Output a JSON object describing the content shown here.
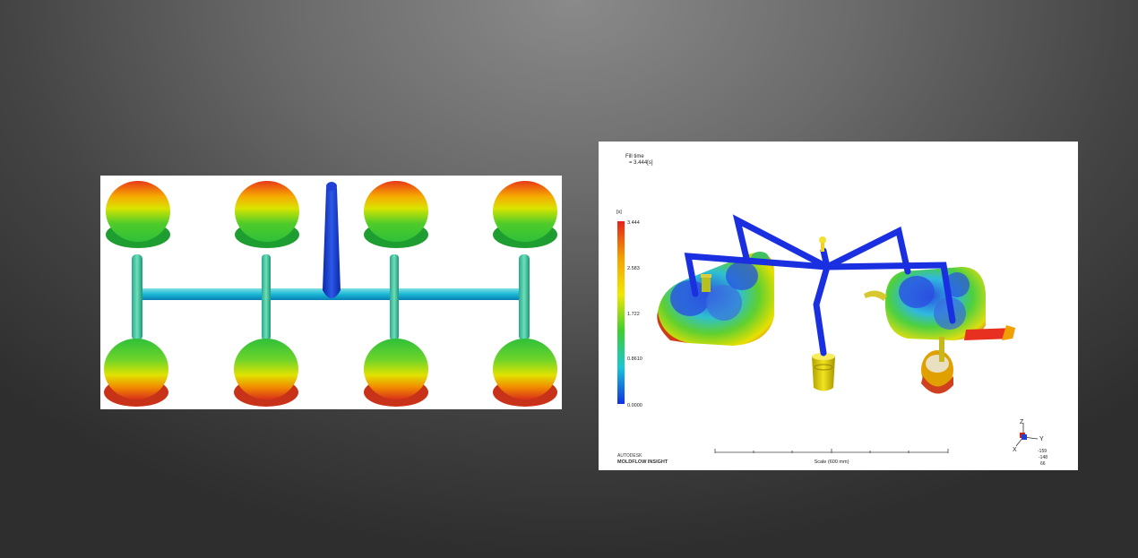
{
  "right_panel": {
    "result_title": "Fill time",
    "result_value": "= 3.444[s]",
    "legend": {
      "unit": "[s]",
      "ticks": [
        "3.444",
        "2.583",
        "1.722",
        "0.8610",
        "0.0000"
      ],
      "colors": [
        "#e8201a",
        "#f5a000",
        "#f2e800",
        "#3fcf2e",
        "#19c6d6",
        "#1030e6"
      ]
    },
    "brand_line1": "AUTODESK",
    "brand_line2": "MOLDFLOW INSIGHT",
    "scale_label": "Scale (600 mm)",
    "axes": {
      "z": "Z",
      "y": "Y",
      "x": "X",
      "readout": [
        "-159",
        "-148",
        "66"
      ]
    }
  }
}
